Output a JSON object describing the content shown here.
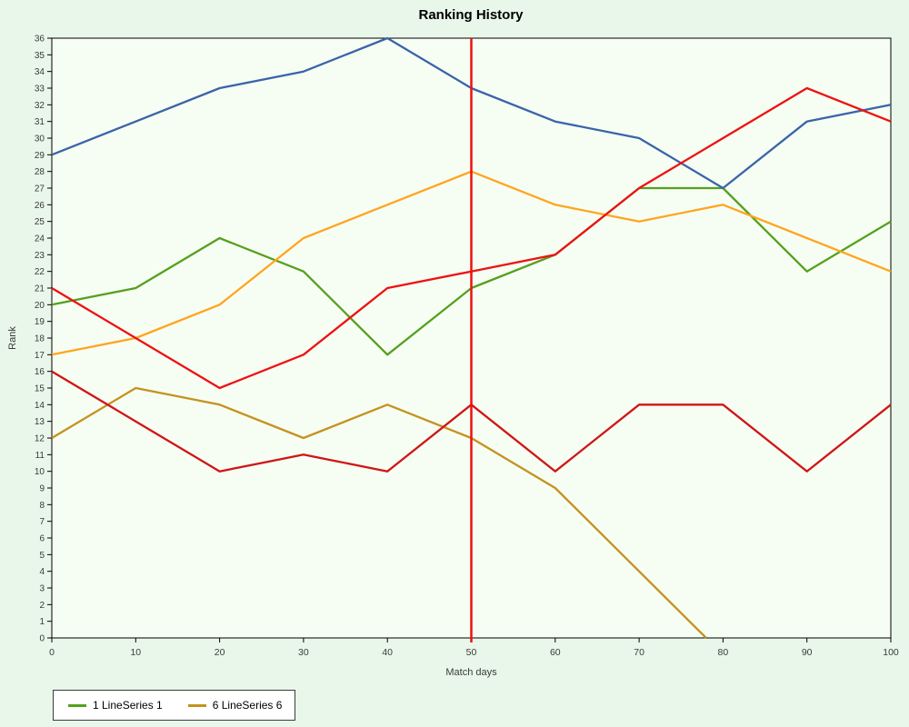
{
  "colors": {
    "page_background": "#e8f7e9",
    "plot_background": "#f6fdf3",
    "axis_line": "#000000",
    "tick_label": "#3a3a3a",
    "marker_red": "#ee1111"
  },
  "chart_data": {
    "type": "line",
    "title": "Ranking History",
    "xlabel": "Match days",
    "ylabel": "Rank",
    "xlim": [
      0,
      100
    ],
    "ylim": [
      0,
      36
    ],
    "x_tick_step": 10,
    "y_tick_step": 1,
    "grid": "off",
    "legend_position": "bottom-left",
    "x": [
      0,
      10,
      20,
      30,
      40,
      50,
      60,
      70,
      80,
      90,
      100
    ],
    "series": [
      {
        "name": "lineseries-6-gold",
        "legend": "6 LineSeries 6",
        "color": "#c5921f",
        "points": [
          [
            0,
            12
          ],
          [
            10,
            15
          ],
          [
            20,
            14
          ],
          [
            30,
            12
          ],
          [
            40,
            14
          ],
          [
            50,
            12
          ],
          [
            60,
            9
          ],
          [
            70,
            4
          ],
          [
            78,
            0
          ]
        ]
      },
      {
        "name": "lineseries-1-green",
        "legend": "1 LineSeries 1",
        "color": "#55a01e",
        "values": [
          20,
          21,
          24,
          22,
          17,
          21,
          23,
          27,
          27,
          22,
          25
        ]
      },
      {
        "name": "series-orange",
        "legend": null,
        "color": "#ffa51f",
        "values": [
          17,
          18,
          20,
          24,
          26,
          28,
          26,
          25,
          26,
          24,
          22
        ]
      },
      {
        "name": "series-blue",
        "legend": null,
        "color": "#3a64a8",
        "values": [
          29,
          31,
          33,
          34,
          36,
          33,
          31,
          30,
          27,
          31,
          32
        ]
      },
      {
        "name": "series-dark-red",
        "legend": null,
        "color": "#cf1616",
        "values": [
          16,
          13,
          10,
          11,
          10,
          14,
          10,
          14,
          14,
          10,
          14
        ]
      },
      {
        "name": "series-bright-red",
        "legend": null,
        "color": "#ee1111",
        "values": [
          21,
          18,
          15,
          17,
          21,
          22,
          23,
          27,
          30,
          33,
          31
        ]
      }
    ],
    "marker": {
      "x": 50,
      "color": "#ee1111"
    }
  },
  "legend": {
    "entries": [
      {
        "label": "1 LineSeries 1",
        "color": "#55a01e"
      },
      {
        "label": "6 LineSeries 6",
        "color": "#c5921f"
      }
    ]
  }
}
